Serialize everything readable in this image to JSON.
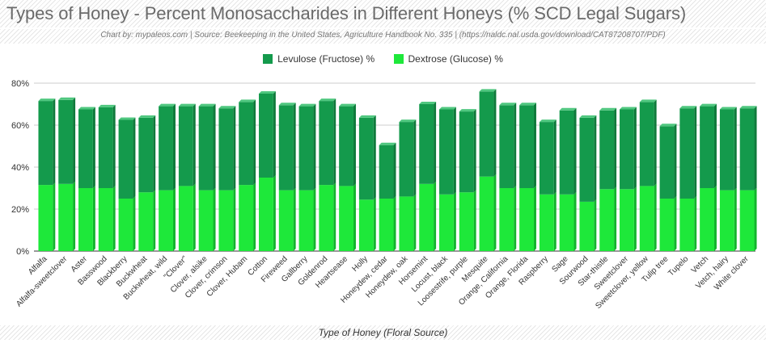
{
  "chart_data": {
    "type": "bar",
    "stacked": true,
    "title": "Types of Honey - Percent Monosaccharides in Different Honeys (% SCD Legal Sugars)",
    "subtitle": "Chart by: mypaleos.com | Source: Beekeeping in the United States, Agriculture Handbook No. 335 | (https://naldc.nal.usda.gov/download/CAT87208707/PDF)",
    "xlabel": "Type of Honey (Floral Source)",
    "ylabel": "",
    "ylim": [
      0,
      80
    ],
    "yticks": [
      "0%",
      "20%",
      "40%",
      "60%",
      "80%"
    ],
    "grid": true,
    "legend_position": "top",
    "categories": [
      "Alfalfa",
      "Alfalfa-sweetclover",
      "Aster",
      "Basswood",
      "Blackberry",
      "Buckwheat",
      "Buckwheat, wild",
      "\"Clover\"",
      "Clover, alsike",
      "Clover, crimson",
      "Clover, Hubam",
      "Cotton",
      "Fireweed",
      "Gallberry",
      "Goldenrod",
      "Heartsease",
      "Holly",
      "Honeydew, cedar",
      "Honeydew, oak",
      "Horsemint",
      "Locust, black",
      "Loosestrife, purple",
      "Mesquite",
      "Orange, California",
      "Orange, Florida",
      "Raspberry",
      "Sage",
      "Sourwood",
      "Star-thistle",
      "Sweetclover",
      "Sweetclover, yellow",
      "Tulip tree",
      "Tupelo",
      "Vetch",
      "Vetch, hairy",
      "White clover"
    ],
    "series": [
      {
        "name": "Dextrose (Glucose) %",
        "color": "#1ee83a",
        "values": [
          31.5,
          32,
          30,
          30,
          25,
          28,
          29,
          31,
          29,
          29,
          31.5,
          35,
          29,
          29,
          31.5,
          31,
          24.5,
          25,
          26,
          32,
          27,
          28,
          35.5,
          30,
          30,
          27,
          27,
          23.5,
          29.5,
          29.5,
          31,
          25,
          25,
          30,
          29,
          29
        ]
      },
      {
        "name": "Levulose (Fructose) %",
        "color": "#149a4c",
        "values": [
          40,
          40,
          37.5,
          38.5,
          37.5,
          35.5,
          40,
          38,
          40,
          39,
          39.5,
          40,
          40.5,
          40,
          40,
          38,
          39,
          25.5,
          35.5,
          38,
          40.5,
          38.5,
          40.5,
          39.5,
          39.5,
          34.5,
          40,
          40,
          37.5,
          38,
          40,
          34.5,
          43,
          39,
          38.5,
          39
        ]
      }
    ]
  }
}
